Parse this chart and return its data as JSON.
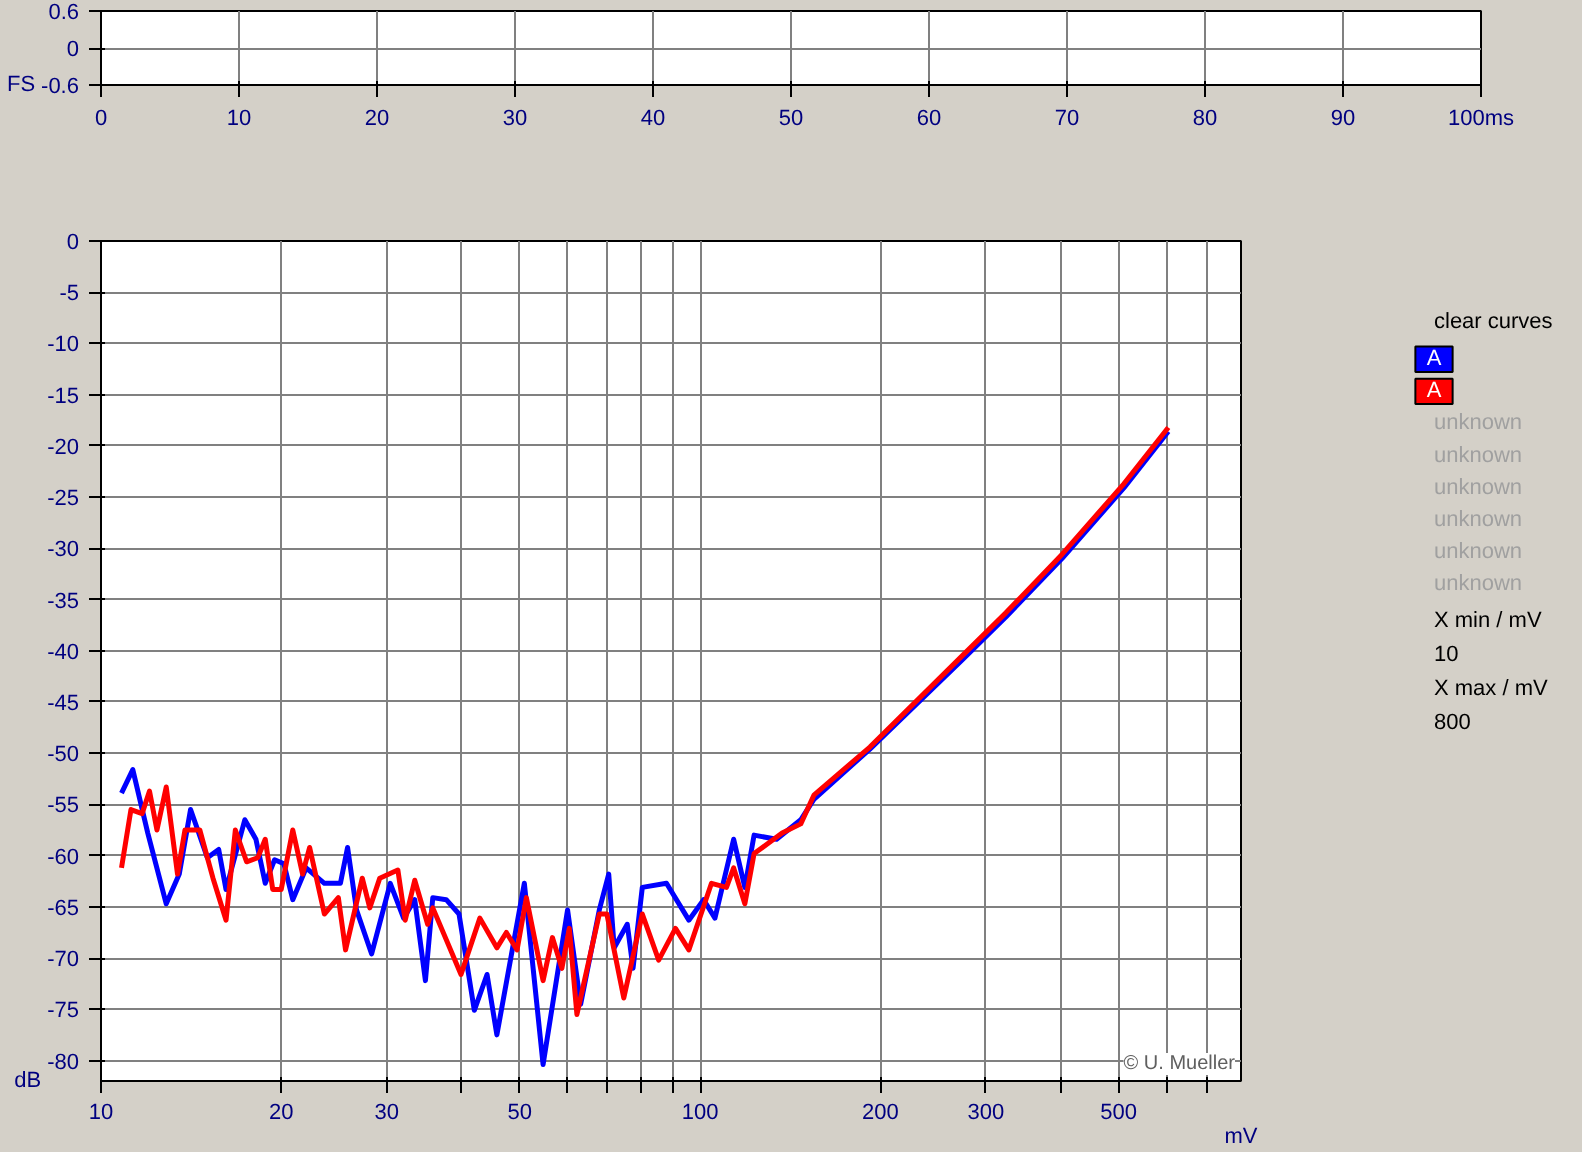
{
  "chart_data": [
    {
      "type": "line",
      "ylabel": "FS",
      "xlim": [
        0,
        100
      ],
      "ylim": [
        -0.6,
        0.6
      ],
      "xticks": [
        0,
        10,
        20,
        30,
        40,
        50,
        60,
        70,
        80,
        90,
        {
          "value": 100,
          "label": "100ms"
        }
      ],
      "yticks": [
        -0.6,
        0,
        0.6
      ],
      "grid": true
    },
    {
      "type": "line",
      "xlabel": "mV",
      "ylabel": "dB",
      "log": "x",
      "xlim": [
        10,
        800
      ],
      "ylim": [
        -82,
        0
      ],
      "xticks": [
        10,
        20,
        30,
        {
          "value": 40,
          "label": null
        },
        50,
        {
          "value": 60,
          "label": null
        },
        {
          "value": 70,
          "label": null
        },
        {
          "value": 80,
          "label": null
        },
        {
          "value": 90,
          "label": null
        },
        100,
        200,
        300,
        {
          "value": 400,
          "label": null
        },
        500,
        {
          "value": 600,
          "label": null
        },
        {
          "value": 700,
          "label": null
        }
      ],
      "yticks": [
        0,
        -5,
        -10,
        -15,
        -20,
        -25,
        -30,
        -35,
        -40,
        -45,
        -50,
        -55,
        -60,
        -65,
        -70,
        -75,
        -80
      ],
      "grid": true,
      "legend": "right",
      "line_style": "solid",
      "annotations": [
        "© U. Mueller",
        "clear curves",
        "unknown",
        "unknown",
        "unknown",
        "unknown",
        "unknown",
        "unknown",
        "X min / mV",
        "10",
        "X max / mV",
        "800"
      ],
      "series": [
        {
          "name": "A",
          "color": "#0000ff",
          "x": [
            10.82,
            11.3,
            11.97,
            12.85,
            13.51,
            14.11,
            15.05,
            15.72,
            16.17,
            17.38,
            18.14,
            18.8,
            19.49,
            20.2,
            20.9,
            22.0,
            23.6,
            25.1,
            25.8,
            26.7,
            28.3,
            30.4,
            32.0,
            33.4,
            34.8,
            35.8,
            37.7,
            39.6,
            42.0,
            44.1,
            45.8,
            50.9,
            54.7,
            60.1,
            63.2,
            67.9,
            70.4,
            71.9,
            75.6,
            77.3,
            80.1,
            87.9,
            95.8,
            101.4,
            105.9,
            113.8,
            118.8,
            123.1,
            134.2,
            147.3,
            154.9,
            192.1,
            275,
            324,
            402,
            510,
            605
          ],
          "values": [
            -53.9,
            -51.6,
            -57.8,
            -64.7,
            -61.8,
            -55.5,
            -60.2,
            -59.4,
            -63.3,
            -56.5,
            -58.4,
            -62.7,
            -60.4,
            -60.8,
            -64.3,
            -61.2,
            -62.7,
            -62.7,
            -59.2,
            -65.3,
            -69.6,
            -62.7,
            -66.1,
            -64.3,
            -72.2,
            -64.1,
            -64.3,
            -65.7,
            -75.1,
            -71.6,
            -77.5,
            -62.7,
            -80.4,
            -65.3,
            -74.5,
            -65.3,
            -61.8,
            -69.0,
            -66.7,
            -71.0,
            -63.1,
            -62.7,
            -66.3,
            -64.3,
            -66.1,
            -58.4,
            -63.1,
            -58.0,
            -58.4,
            -56.5,
            -54.5,
            -49.6,
            -40.8,
            -36.7,
            -31.0,
            -24.1,
            -18.6
          ]
        },
        {
          "name": "A",
          "color": "#ff0000",
          "x": [
            10.82,
            11.22,
            11.71,
            12.05,
            12.4,
            12.85,
            13.42,
            13.81,
            14.62,
            15.38,
            16.17,
            16.76,
            17.5,
            18.27,
            18.8,
            19.35,
            19.99,
            20.9,
            21.7,
            22.3,
            23.6,
            24.9,
            25.6,
            27.3,
            28.1,
            29.2,
            31.3,
            32.2,
            33.4,
            35.1,
            35.8,
            39.9,
            42.9,
            45.8,
            47.5,
            49.5,
            51.3,
            54.7,
            56.7,
            58.8,
            60.5,
            62.3,
            67.9,
            69.9,
            74.6,
            80.1,
            85.3,
            91.0,
            95.8,
            104.5,
            110.7,
            113.8,
            118.8,
            123.1,
            137.1,
            147.3,
            154.9,
            192.1,
            275,
            324,
            402,
            510,
            605
          ],
          "values": [
            -61.2,
            -55.5,
            -55.9,
            -53.7,
            -57.5,
            -53.3,
            -61.8,
            -57.5,
            -57.5,
            -62.2,
            -66.3,
            -57.5,
            -60.6,
            -60.2,
            -58.4,
            -63.3,
            -63.3,
            -57.5,
            -61.8,
            -59.2,
            -65.7,
            -64.1,
            -69.2,
            -62.2,
            -65.1,
            -62.2,
            -61.4,
            -66.3,
            -62.4,
            -66.7,
            -65.1,
            -71.6,
            -66.1,
            -69.0,
            -67.5,
            -69.2,
            -64.1,
            -72.2,
            -68.0,
            -71.0,
            -67.1,
            -75.5,
            -65.7,
            -65.7,
            -73.9,
            -65.7,
            -70.2,
            -67.1,
            -69.2,
            -62.7,
            -63.1,
            -61.2,
            -64.7,
            -59.8,
            -57.8,
            -56.9,
            -54.1,
            -49.4,
            -40.4,
            -36.3,
            -30.6,
            -23.7,
            -18.2
          ]
        }
      ]
    }
  ]
}
